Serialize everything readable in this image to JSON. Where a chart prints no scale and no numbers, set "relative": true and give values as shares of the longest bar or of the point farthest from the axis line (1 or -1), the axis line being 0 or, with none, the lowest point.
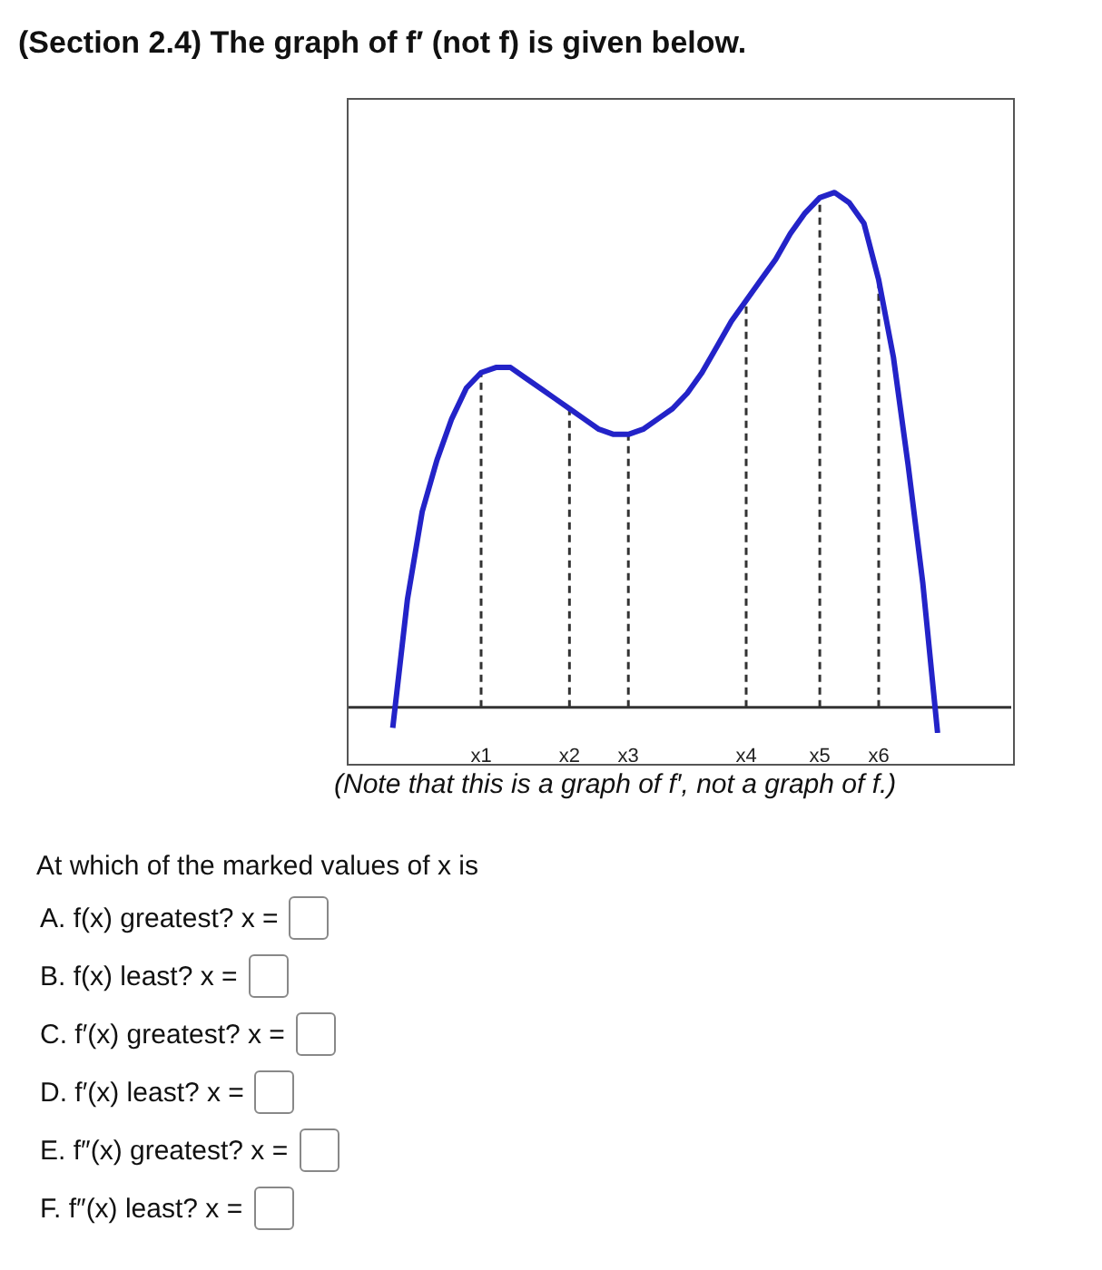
{
  "chart_data": {
    "type": "line",
    "title": "(Section 2.4) The graph of f′ (not f) is given below.",
    "relative": true,
    "categories": [
      null,
      null,
      null,
      null,
      null,
      null,
      null,
      null,
      null,
      "x1",
      null,
      null,
      null,
      null,
      null,
      "x2",
      null,
      null,
      null,
      "x3",
      null,
      null,
      null,
      null,
      null,
      null,
      null,
      "x4",
      null,
      null,
      null,
      null,
      "x5",
      null,
      null,
      null,
      "x6",
      null,
      null,
      null,
      null,
      null,
      null,
      null,
      null,
      null
    ],
    "series": [
      {
        "color": "#2323c8",
        "values": [
          null,
          null,
          null,
          -0.04,
          0.21,
          0.38,
          0.48,
          0.56,
          0.62,
          0.65,
          0.66,
          0.66,
          0.64,
          0.62,
          0.6,
          0.58,
          0.56,
          0.54,
          0.53,
          0.53,
          0.54,
          0.56,
          0.58,
          0.61,
          0.65,
          0.7,
          0.75,
          0.79,
          0.83,
          0.87,
          0.92,
          0.96,
          0.99,
          1,
          0.98,
          0.94,
          0.83,
          0.68,
          0.47,
          0.24,
          -0.05,
          null,
          null,
          null,
          null,
          null
        ]
      }
    ],
    "ref_lines": [
      {
        "axis": "x",
        "value": "x1",
        "color": "#333333",
        "line_style": "dashed"
      },
      {
        "axis": "x",
        "value": "x2",
        "color": "#333333",
        "line_style": "dashed"
      },
      {
        "axis": "x",
        "value": "x3",
        "color": "#333333",
        "line_style": "dashed"
      },
      {
        "axis": "x",
        "value": "x4",
        "color": "#333333",
        "line_style": "dashed"
      },
      {
        "axis": "x",
        "value": "x5",
        "color": "#333333",
        "line_style": "dashed"
      },
      {
        "axis": "x",
        "value": "x6",
        "color": "#333333",
        "line_style": "dashed"
      }
    ],
    "annotations": [
      "(Note that this is a graph of f′, not a graph of f.)",
      "At which of the marked values of x is",
      "A. f(x) greatest? x =",
      "B. f(x) least? x =",
      "C. f′(x) greatest? x =",
      "D. f′(x) least? x =",
      "E. f″(x) greatest? x =",
      "F. f″(x) least? x ="
    ],
    "grid": false,
    "legend": false,
    "marker": "none",
    "line_style": "solid",
    "tick_labels": "x"
  }
}
